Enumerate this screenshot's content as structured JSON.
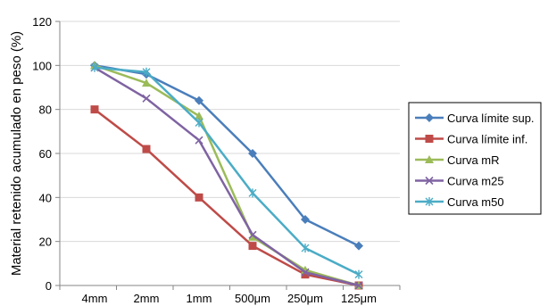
{
  "chart_data": {
    "type": "line",
    "title": "",
    "xlabel": "",
    "ylabel": "Material retenido acumulado en peso (%)",
    "categories": [
      "4mm",
      "2mm",
      "1mm",
      "500μm",
      "250μm",
      "125μm"
    ],
    "ylim": [
      0,
      120
    ],
    "yticks": [
      0,
      20,
      40,
      60,
      80,
      100,
      120
    ],
    "grid": "horizontal",
    "legend_position": "right",
    "series": [
      {
        "name": "Curva límite sup.",
        "color": "#4a7ebb",
        "marker": "diamond",
        "values": [
          100,
          96,
          84,
          60,
          30,
          18
        ]
      },
      {
        "name": "Curva límite inf.",
        "color": "#be4b48",
        "marker": "square",
        "values": [
          80,
          62,
          40,
          18,
          5,
          0
        ]
      },
      {
        "name": "Curva mR",
        "color": "#9bbb59",
        "marker": "triangle",
        "values": [
          100,
          92,
          77,
          22,
          7,
          0
        ]
      },
      {
        "name": "Curva m25",
        "color": "#7f63a2",
        "marker": "x",
        "values": [
          99,
          85,
          66,
          23,
          6,
          0
        ]
      },
      {
        "name": "Curva m50",
        "color": "#4bacc6",
        "marker": "star",
        "values": [
          99,
          97,
          74,
          42,
          17,
          5
        ]
      }
    ]
  }
}
